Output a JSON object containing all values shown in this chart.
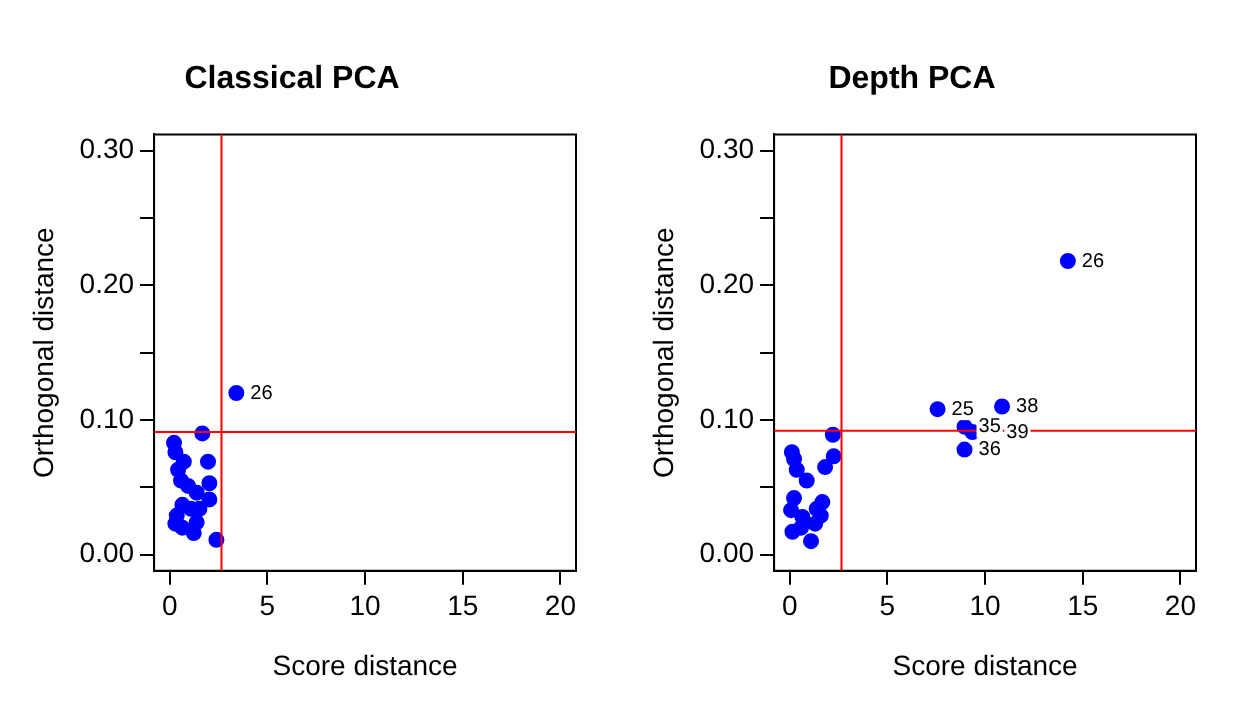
{
  "chart_data": [
    {
      "type": "scatter",
      "title": "Classical PCA",
      "xlabel": "Score distance",
      "ylabel": "Orthogonal distance",
      "marker": "circle",
      "grid": false,
      "legend": false,
      "xlim": [
        -0.8,
        20.8
      ],
      "ylim": [
        -0.012,
        0.312
      ],
      "xticks": [
        0,
        5,
        10,
        15,
        20
      ],
      "yticks": [
        {
          "value": 0,
          "label": "0.00"
        },
        {
          "value": 0.05,
          "label": null
        },
        {
          "value": 0.1,
          "label": "0.10"
        },
        {
          "value": 0.15,
          "label": null
        },
        {
          "value": 0.2,
          "label": "0.20"
        },
        {
          "value": 0.25,
          "label": null
        },
        {
          "value": 0.3,
          "label": "0.30"
        }
      ],
      "series": [
        {
          "color": "#0000ff",
          "x": [
            3.41,
            1.67,
            0.22,
            0.29,
            0.72,
            1.96,
            0.43,
            0.58,
            0.94,
            2.03,
            2.03,
            1.38,
            0.65,
            1.09,
            0.36,
            1.38,
            0.29,
            0.65,
            1.23,
            2.39,
            1.52
          ],
          "values": [
            0.12,
            0.09,
            0.083,
            0.076,
            0.069,
            0.069,
            0.063,
            0.055,
            0.051,
            0.053,
            0.041,
            0.046,
            0.037,
            0.034,
            0.029,
            0.024,
            0.023,
            0.02,
            0.016,
            0.011,
            0.034
          ]
        }
      ],
      "ref_lines": [
        {
          "axis": "x",
          "value": 2.65,
          "color": "#ff0000"
        },
        {
          "axis": "y",
          "value": 0.091,
          "color": "#ff0000"
        }
      ],
      "annotations": [
        {
          "text": "26",
          "x": 3.41,
          "y": 0.12
        }
      ]
    },
    {
      "type": "scatter",
      "title": "Depth PCA",
      "xlabel": "Score distance",
      "ylabel": "Orthogonal distance",
      "marker": "circle",
      "grid": false,
      "legend": false,
      "xlim": [
        -0.8,
        20.8
      ],
      "ylim": [
        -0.012,
        0.312
      ],
      "xticks": [
        0,
        5,
        10,
        15,
        20
      ],
      "yticks": [
        {
          "value": 0,
          "label": "0.00"
        },
        {
          "value": 0.05,
          "label": null
        },
        {
          "value": 0.1,
          "label": "0.10"
        },
        {
          "value": 0.15,
          "label": null
        },
        {
          "value": 0.2,
          "label": "0.20"
        },
        {
          "value": 0.25,
          "label": null
        },
        {
          "value": 0.3,
          "label": "0.30"
        }
      ],
      "series": [
        {
          "color": "#0000ff",
          "x": [
            14.24,
            7.57,
            10.87,
            8.95,
            9.35,
            8.95,
            2.21,
            2.25,
            1.81,
            0.11,
            0.22,
            0.36,
            0.87,
            0.22,
            1.67,
            0.07,
            1.38,
            1.59,
            0.65,
            0.14,
            0.58,
            1.09,
            1.3
          ],
          "values": [
            0.218,
            0.108,
            0.11,
            0.095,
            0.091,
            0.078,
            0.089,
            0.073,
            0.065,
            0.076,
            0.071,
            0.063,
            0.055,
            0.042,
            0.039,
            0.033,
            0.034,
            0.029,
            0.028,
            0.017,
            0.02,
            0.01,
            0.023
          ]
        }
      ],
      "ref_lines": [
        {
          "axis": "x",
          "value": 2.65,
          "color": "#ff0000"
        },
        {
          "axis": "y",
          "value": 0.092,
          "color": "#ff0000"
        }
      ],
      "annotations": [
        {
          "text": "26",
          "x": 14.24,
          "y": 0.218
        },
        {
          "text": "25",
          "x": 7.57,
          "y": 0.108
        },
        {
          "text": "38",
          "x": 10.87,
          "y": 0.11
        },
        {
          "text": "35",
          "x": 8.95,
          "y": 0.095
        },
        {
          "text": "39",
          "x": 9.35,
          "y": 0.091
        },
        {
          "text": "36",
          "x": 8.95,
          "y": 0.078
        }
      ]
    }
  ]
}
